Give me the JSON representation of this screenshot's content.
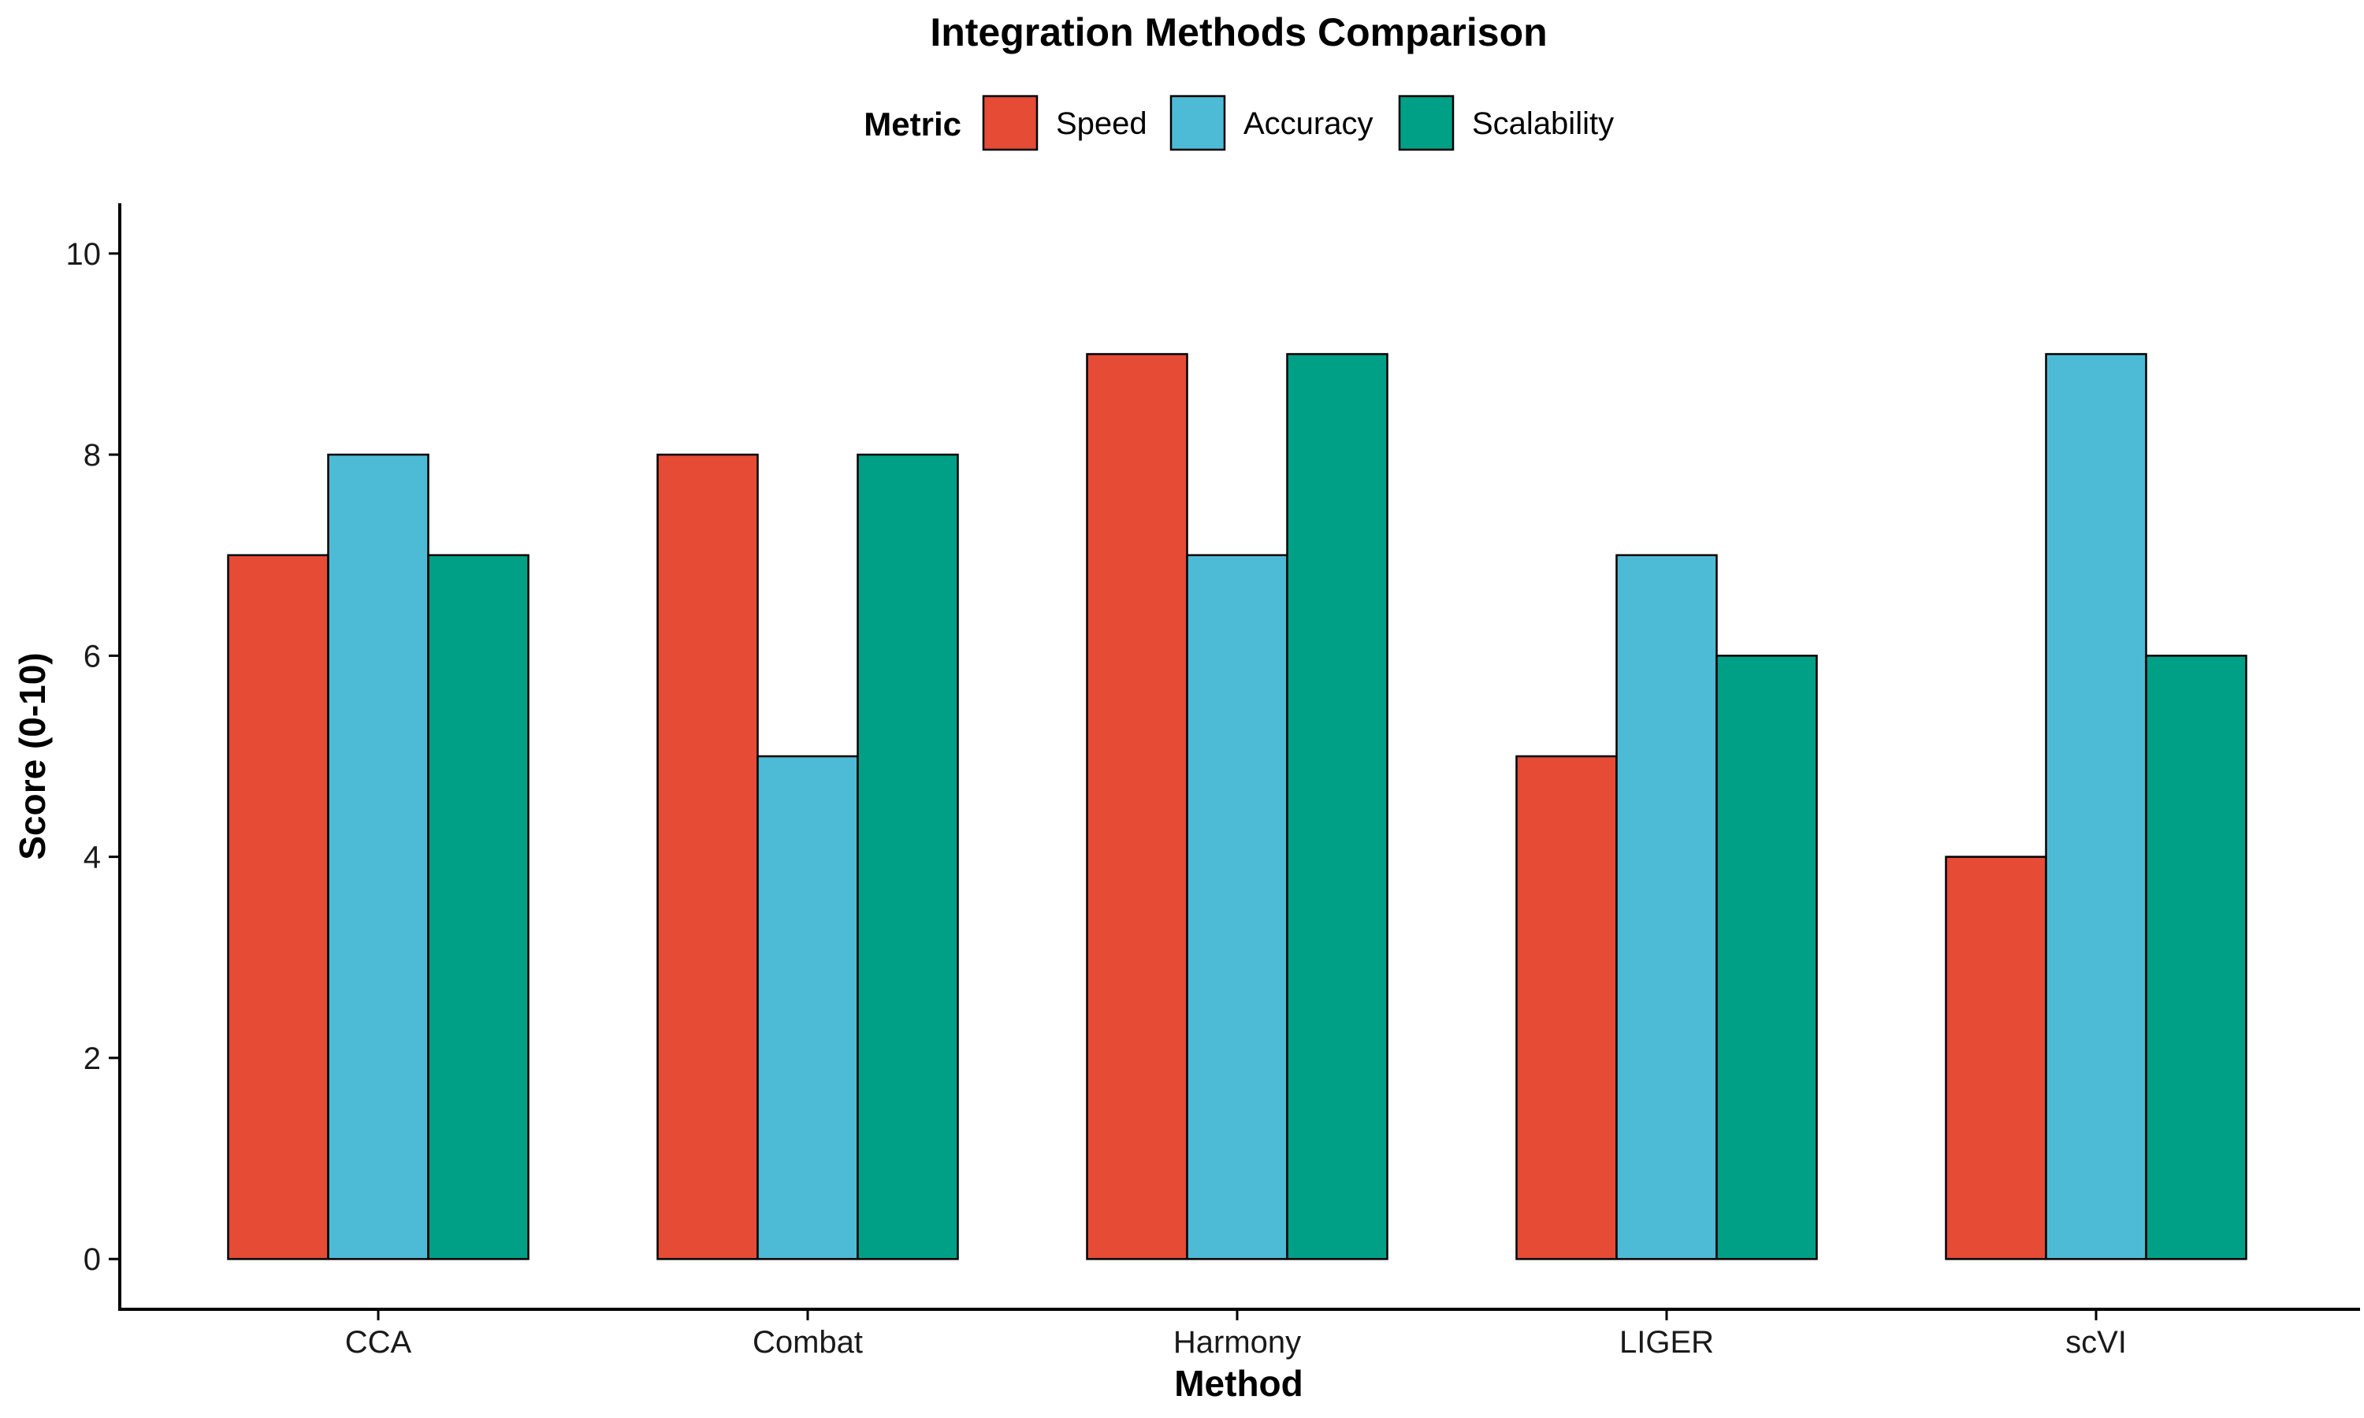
{
  "chart_data": {
    "type": "bar",
    "title": "Integration Methods Comparison",
    "xlabel": "Method",
    "ylabel": "Score (0-10)",
    "legend_title": "Metric",
    "legend_position": "top",
    "grid": false,
    "categories": [
      "CCA",
      "Combat",
      "Harmony",
      "LIGER",
      "scVI"
    ],
    "series": [
      {
        "name": "Speed",
        "color": "#E64B35",
        "values": [
          7,
          8,
          9,
          5,
          4
        ]
      },
      {
        "name": "Accuracy",
        "color": "#4DBBD5",
        "values": [
          8,
          5,
          7,
          7,
          9
        ]
      },
      {
        "name": "Scalability",
        "color": "#00A087",
        "values": [
          7,
          8,
          9,
          6,
          6
        ]
      }
    ],
    "ylim": [
      -0.5,
      10.5
    ],
    "yticks": [
      0,
      2,
      4,
      6,
      8,
      10
    ]
  }
}
